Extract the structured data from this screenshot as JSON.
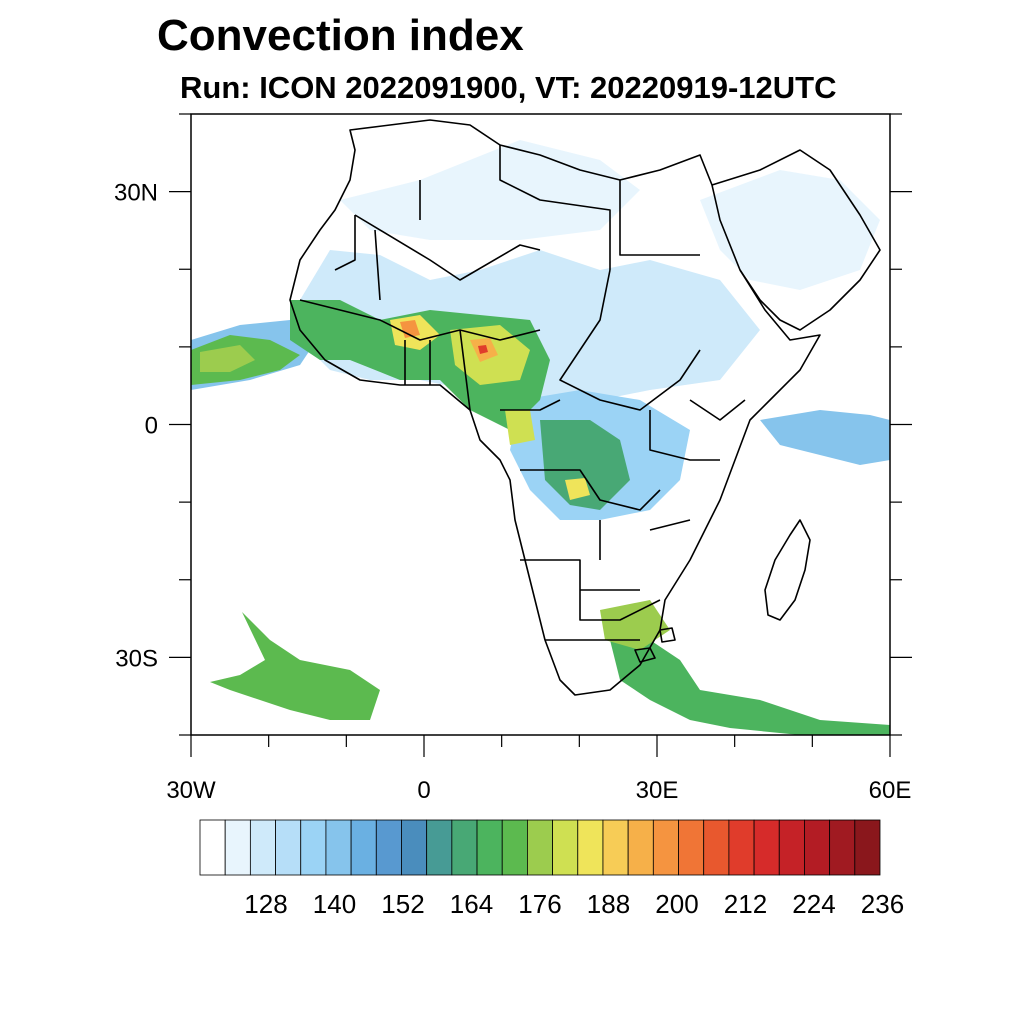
{
  "title": "Convection index",
  "subtitle": "Run: ICON 2022091900,  VT: 20220919-12UTC",
  "axes": {
    "lon_range": [
      -30,
      60
    ],
    "lat_range": [
      -40,
      40
    ],
    "lon_ticks": [
      {
        "value": -30,
        "label": "30W"
      },
      {
        "value": 0,
        "label": "0"
      },
      {
        "value": 30,
        "label": "30E"
      },
      {
        "value": 60,
        "label": "60E"
      }
    ],
    "lat_ticks": [
      {
        "value": 30,
        "label": "30N"
      },
      {
        "value": 0,
        "label": "0"
      },
      {
        "value": -30,
        "label": "30S"
      }
    ]
  },
  "colorbar": {
    "colors": [
      "#ffffff",
      "#e8f5fd",
      "#cfeafa",
      "#b6def8",
      "#9bd3f5",
      "#86c4ec",
      "#6ab0e2",
      "#5899d0",
      "#4a8dbd",
      "#479b95",
      "#48a875",
      "#4cb45e",
      "#5cba4f",
      "#9ccc4e",
      "#cfe052",
      "#efe45a",
      "#f7cc56",
      "#f6b049",
      "#f59440",
      "#f07536",
      "#e8582e",
      "#e03c2b",
      "#d62b2a",
      "#c52227",
      "#b31c24",
      "#a01a21",
      "#8a171c"
    ],
    "labels": [
      "128",
      "140",
      "152",
      "164",
      "176",
      "188",
      "200",
      "212",
      "224",
      "236"
    ]
  }
}
